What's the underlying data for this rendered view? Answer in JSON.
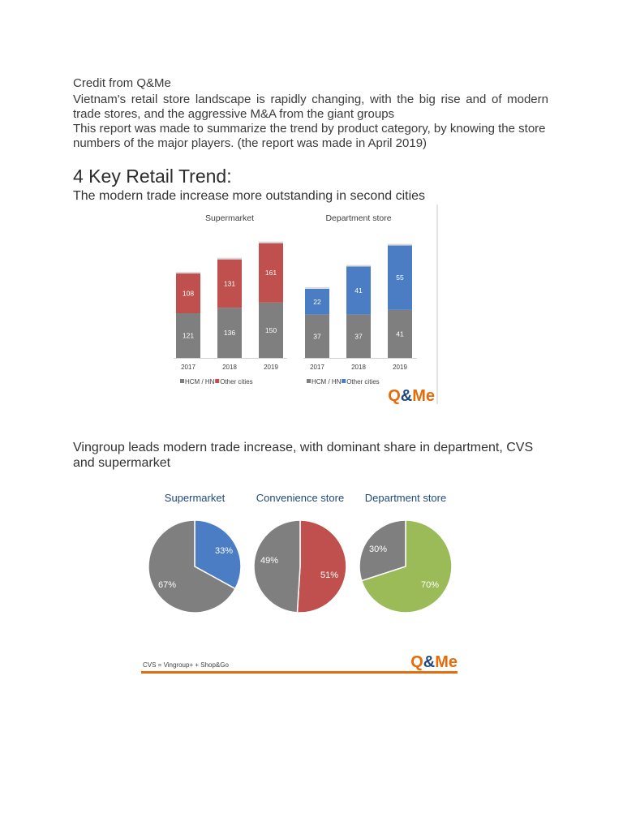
{
  "text": {
    "credit": "Credit from Q&Me",
    "intro1": "Vietnam's retail store landscape is rapidly changing, with the big rise and of modern trade stores, and the aggressive M&A from the giant groups",
    "intro2": "This report was made to summarize the trend by product category, by knowing the store numbers of the major players. (the report was made in April 2019)",
    "heading": "4 Key Retail Trend:",
    "sub1": "The modern trade increase more outstanding in second cities",
    "sub2": "Vingroup leads modern trade increase, with dominant share in department, CVS and supermarket"
  },
  "logo_text": "Q&Me",
  "colors": {
    "gray": "#7f7f7f",
    "red": "#c0504d",
    "blue": "#4a7dc4",
    "green": "#9bbb59",
    "orange": "#e46c0a",
    "navy": "#1f497d"
  },
  "chart_data": [
    {
      "type": "bar",
      "stacked": true,
      "title": "Supermarket",
      "categories": [
        "2017",
        "2018",
        "2019"
      ],
      "series": [
        {
          "name": "HCM / HN",
          "values": [
            121,
            136,
            150
          ],
          "color": "#7f7f7f"
        },
        {
          "name": "Other cities",
          "values": [
            108,
            131,
            161
          ],
          "color": "#c0504d"
        }
      ],
      "ylim": [
        0,
        330
      ],
      "legend": "bottom"
    },
    {
      "type": "bar",
      "stacked": true,
      "title": "Department store",
      "categories": [
        "2017",
        "2018",
        "2019"
      ],
      "series": [
        {
          "name": "HCM / HN",
          "values": [
            37,
            37,
            41
          ],
          "color": "#7f7f7f"
        },
        {
          "name": "Other cities",
          "values": [
            22,
            41,
            55
          ],
          "color": "#4a7dc4"
        }
      ],
      "ylim": [
        0,
        104
      ],
      "legend": "bottom"
    },
    {
      "type": "pie",
      "title": "Supermarket",
      "slices": [
        {
          "label": "33%",
          "value": 33,
          "color": "#4a7dc4"
        },
        {
          "label": "67%",
          "value": 67,
          "color": "#7f7f7f"
        }
      ]
    },
    {
      "type": "pie",
      "title": "Convenience store",
      "slices": [
        {
          "label": "51%",
          "value": 51,
          "color": "#c0504d"
        },
        {
          "label": "49%",
          "value": 49,
          "color": "#7f7f7f"
        }
      ]
    },
    {
      "type": "pie",
      "title": "Department store",
      "slices": [
        {
          "label": "70%",
          "value": 70,
          "color": "#9bbb59"
        },
        {
          "label": "30%",
          "value": 30,
          "color": "#7f7f7f"
        }
      ]
    }
  ],
  "pie_footnote": "CVS = Vingroup+ + Shop&Go"
}
